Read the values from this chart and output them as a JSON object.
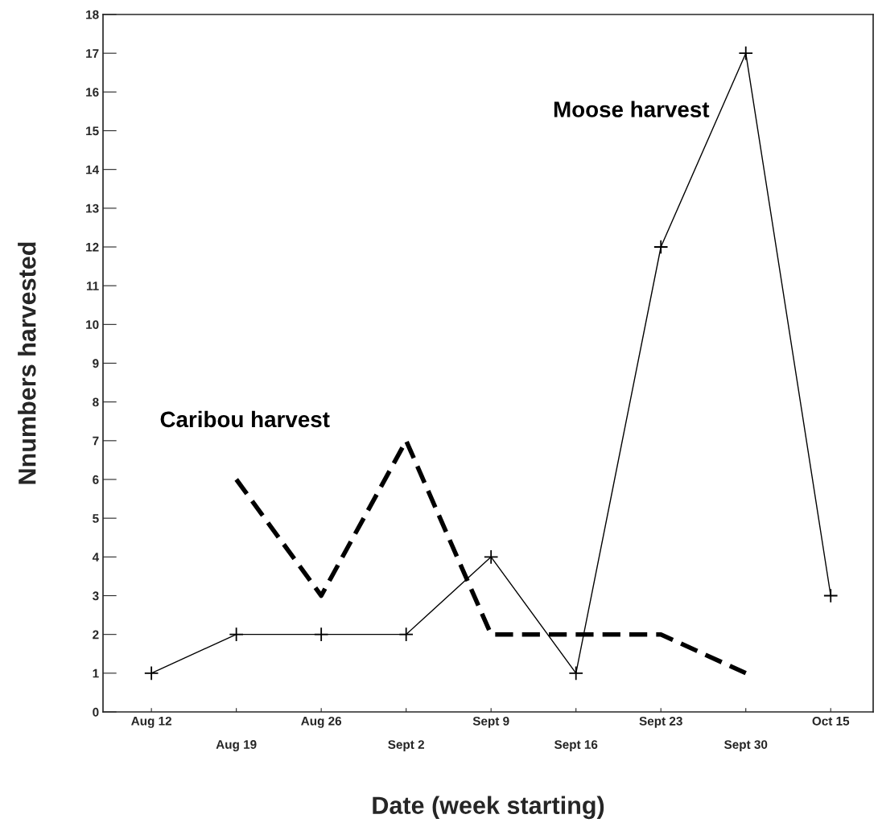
{
  "chart_data": {
    "type": "line",
    "xlabel": "Date (week starting)",
    "ylabel": "Nnumbers harvested",
    "categories": [
      "Aug 12",
      "Aug 19",
      "Aug 26",
      "Sept 2",
      "Sept 9",
      "Sept 16",
      "Sept 23",
      "Sept 30",
      "Oct 15"
    ],
    "series": [
      {
        "name": "Moose harvest",
        "color": "#000000",
        "marker": "cross",
        "line_style": "solid",
        "values": [
          1,
          2,
          2,
          2,
          4,
          1,
          12,
          17,
          3
        ]
      },
      {
        "name": "Caribou harvest",
        "color": "#000000",
        "marker": "none",
        "line_style": "dashed",
        "values": [
          null,
          6,
          3,
          7,
          2,
          2,
          2,
          1,
          null
        ]
      }
    ],
    "ylim": [
      0,
      18
    ],
    "yticks": [
      0,
      1,
      2,
      3,
      4,
      5,
      6,
      7,
      8,
      9,
      10,
      11,
      12,
      13,
      14,
      15,
      16,
      17,
      18
    ],
    "grid": false,
    "legend": false
  }
}
